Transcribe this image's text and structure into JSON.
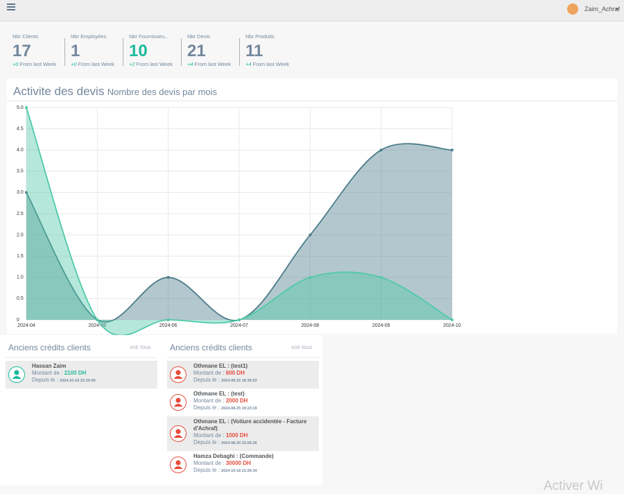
{
  "header": {
    "user": "Zaim_Achraf"
  },
  "stats": [
    {
      "label": "Nbr Clients",
      "value": 17,
      "change": "+0",
      "note": "From last Week",
      "color": "#73879c"
    },
    {
      "label": "Nbr Employées",
      "value": 1,
      "change": "+0",
      "note": "From last Week",
      "color": "#73879c"
    },
    {
      "label": "Nbr Fournisseu...",
      "value": 10,
      "change": "+2",
      "note": "From last Week",
      "color": "#1abb9c"
    },
    {
      "label": "Nbr Devis",
      "value": 21,
      "change": "+4",
      "note": "From last Week",
      "color": "#73879c"
    },
    {
      "label": "Nbr Produits",
      "value": 11,
      "change": "+4",
      "note": "From last Week",
      "color": "#73879c"
    }
  ],
  "chart_data": {
    "type": "area",
    "title": "Activite des devis",
    "subtitle": "Nombre des devis par mois",
    "categories": [
      "2024-04",
      "2024-05",
      "2024-06",
      "2024-07",
      "2024-08",
      "2024-09",
      "2024-10"
    ],
    "series": [
      {
        "color": "#4b7c8a",
        "values": [
          3,
          0,
          1,
          0,
          2,
          4,
          4
        ]
      },
      {
        "color": "#4fc9a8",
        "values": [
          5,
          0,
          0,
          0,
          1,
          1,
          0
        ]
      }
    ],
    "ylim": [
      0,
      5
    ],
    "yticks": [
      0,
      0.5,
      {
        "value": 1,
        "label": "1.0"
      },
      1.5,
      {
        "value": 2,
        "label": "2.0"
      },
      2.5,
      {
        "value": 3,
        "label": "3.0"
      },
      3.5,
      {
        "value": 4,
        "label": "4.0"
      },
      4.5,
      {
        "value": 5,
        "label": "5.0"
      }
    ],
    "grid": true
  },
  "panels": [
    {
      "title": "Anciens crédits clients",
      "link": "voir tous",
      "icon_color": "#1abb9c",
      "amount_color": "#26b99a",
      "items": [
        {
          "name": "Hassan Zaim",
          "amount_label": "Montant de :",
          "amount": "2100 DH",
          "date_label": "Depuis le :",
          "date": "2024-10-18 22:30:09"
        }
      ]
    },
    {
      "title": "Anciens crédits clients",
      "link": "voir tous",
      "icon_color": "#e74c3c",
      "amount_color": "#e74c3c",
      "items": [
        {
          "name": "Othmane EL : (test1)",
          "amount_label": "Montant de :",
          "amount": "600 DH",
          "date_label": "Depuis le :",
          "date": "2024-08-25 18:39:02"
        },
        {
          "name": "Othmane EL : (test)",
          "amount_label": "Montant de :",
          "amount": "2000 DH",
          "date_label": "Depuis le :",
          "date": "2024-08-25 19:23:19"
        },
        {
          "name": "Othmane EL : (Voiture accidentée - Facture d'Achraf)",
          "amount_label": "Montant de :",
          "amount": "1000 DH",
          "date_label": "Depuis le :",
          "date": "2024-08-30 23:05:26"
        },
        {
          "name": "Hamza Debaghi : (Commande)",
          "amount_label": "Montant de :",
          "amount": "30000 DH",
          "date_label": "Depuis le :",
          "date": "2024-10-18 21:05:34"
        }
      ]
    }
  ],
  "watermark": "Activer Wi"
}
